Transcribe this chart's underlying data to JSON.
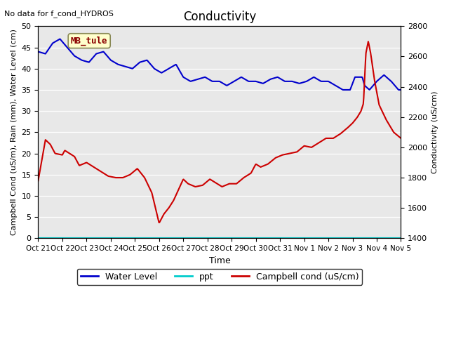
{
  "title": "Conductivity",
  "top_left_text": "No data for f_cond_HYDROS",
  "xlabel": "Time",
  "ylabel_left": "Campbell Cond (uS/m), Rain (mm), Water Level (cm)",
  "ylabel_right": "Conductivity (uS/cm)",
  "ylim_left": [
    0,
    50
  ],
  "ylim_right": [
    1400,
    2800
  ],
  "bg_color": "#e8e8e8",
  "annotation_box": "MB_tule",
  "annotation_color": "#8b0000",
  "annotation_bg": "#ffffcc",
  "xtick_labels": [
    "Oct 21",
    "Oct 22",
    "Oct 23",
    "Oct 24",
    "Oct 25",
    "Oct 26",
    "Oct 27",
    "Oct 28",
    "Oct 29",
    "Oct 30",
    "Oct 31",
    "Nov 1",
    "Nov 2",
    "Nov 3",
    "Nov 4",
    "Nov 5"
  ],
  "water_level_color": "#0000cc",
  "ppt_color": "#00cccc",
  "campbell_color": "#cc0000",
  "right_ymin": 1400,
  "right_ymax": 2800,
  "left_ymin": 0,
  "left_ymax": 50,
  "xmin": 0,
  "xmax": 15,
  "wl_x": [
    0,
    0.3,
    0.6,
    0.9,
    1.2,
    1.5,
    1.8,
    2.1,
    2.4,
    2.7,
    3.0,
    3.3,
    3.6,
    3.9,
    4.2,
    4.5,
    4.8,
    5.1,
    5.4,
    5.7,
    6.0,
    6.3,
    6.6,
    6.9,
    7.2,
    7.5,
    7.8,
    8.1,
    8.4,
    8.7,
    9.0,
    9.3,
    9.6,
    9.9,
    10.2,
    10.5,
    10.8,
    11.1,
    11.4,
    11.7,
    12.0,
    12.3,
    12.6,
    12.9,
    13.1,
    13.4,
    13.5,
    13.6,
    13.7,
    14.0,
    14.3,
    14.6,
    14.9,
    15.0
  ],
  "wl_y": [
    44,
    43.5,
    46,
    47,
    45,
    43,
    42,
    41.5,
    43.5,
    44,
    42,
    41,
    40.5,
    40,
    41.5,
    42,
    40,
    39,
    40,
    41,
    38,
    37,
    37.5,
    38,
    37,
    37,
    36,
    37,
    38,
    37,
    37,
    36.5,
    37.5,
    38,
    37,
    37,
    36.5,
    37,
    38,
    37,
    37,
    36,
    35,
    35,
    38,
    38,
    36,
    35.5,
    35,
    37,
    38.5,
    37,
    35,
    35
  ],
  "camp_x": [
    0,
    0.3,
    0.5,
    0.7,
    1.0,
    1.1,
    1.3,
    1.5,
    1.7,
    2.0,
    2.3,
    2.6,
    2.9,
    3.2,
    3.5,
    3.8,
    4.1,
    4.4,
    4.7,
    4.85,
    5.0,
    5.2,
    5.4,
    5.6,
    5.8,
    6.0,
    6.2,
    6.5,
    6.8,
    7.1,
    7.4,
    7.6,
    7.9,
    8.2,
    8.5,
    8.8,
    9.0,
    9.2,
    9.5,
    9.8,
    10.1,
    10.4,
    10.7,
    11.0,
    11.3,
    11.6,
    11.9,
    12.2,
    12.5,
    12.8,
    13.0,
    13.2,
    13.35,
    13.45,
    13.55,
    13.65,
    13.75,
    13.9,
    14.1,
    14.4,
    14.7,
    15.0
  ],
  "camp_y_right": [
    1780,
    2050,
    2020,
    1960,
    1950,
    1980,
    1960,
    1940,
    1880,
    1900,
    1870,
    1840,
    1810,
    1800,
    1800,
    1820,
    1860,
    1800,
    1700,
    1600,
    1500,
    1560,
    1600,
    1650,
    1720,
    1790,
    1760,
    1740,
    1750,
    1790,
    1760,
    1740,
    1760,
    1760,
    1800,
    1830,
    1890,
    1870,
    1890,
    1930,
    1950,
    1960,
    1970,
    2010,
    2000,
    2030,
    2060,
    2060,
    2090,
    2130,
    2160,
    2200,
    2240,
    2290,
    2620,
    2700,
    2620,
    2450,
    2280,
    2180,
    2100,
    2060
  ]
}
